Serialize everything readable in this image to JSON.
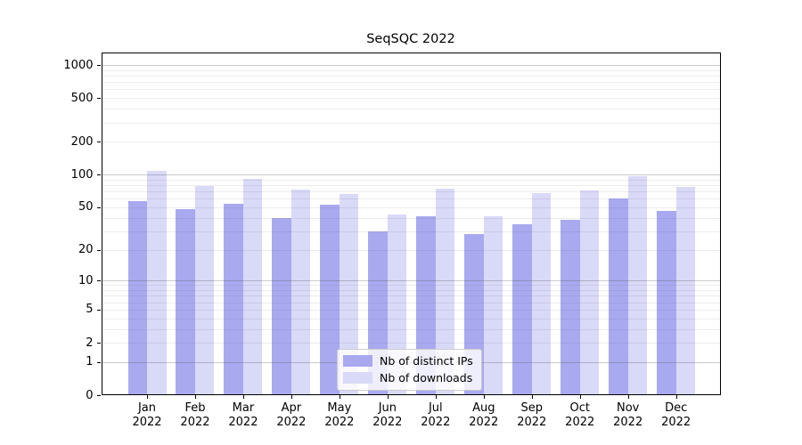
{
  "chart_data": {
    "type": "bar",
    "title": "SeqSQC 2022",
    "categories": [
      "Jan",
      "Feb",
      "Mar",
      "Apr",
      "May",
      "Jun",
      "Jul",
      "Aug",
      "Sep",
      "Oct",
      "Nov",
      "Dec"
    ],
    "year_label": "2022",
    "series": [
      {
        "name": "Nb of distinct IPs",
        "color": "#a9a9f0",
        "values": [
          57,
          48,
          54,
          40,
          53,
          30,
          41,
          28,
          35,
          38,
          60,
          46
        ]
      },
      {
        "name": "Nb of downloads",
        "color": "#d9d9f8",
        "values": [
          108,
          79,
          92,
          73,
          66,
          43,
          74,
          41,
          68,
          71,
          97,
          77
        ]
      }
    ],
    "yscale": "log1p",
    "ylim": [
      0,
      1300
    ],
    "yticks": [
      1000,
      500,
      200,
      100,
      50,
      20,
      10,
      5,
      2,
      1,
      0
    ],
    "grid": true,
    "legend_position": "lower-center",
    "axis_color": "#000000",
    "major_grid_color": "#c8c8c8",
    "minor_grid_color": "#e9e9e9",
    "title_color": "#000000",
    "background_color": "#ffffff"
  }
}
